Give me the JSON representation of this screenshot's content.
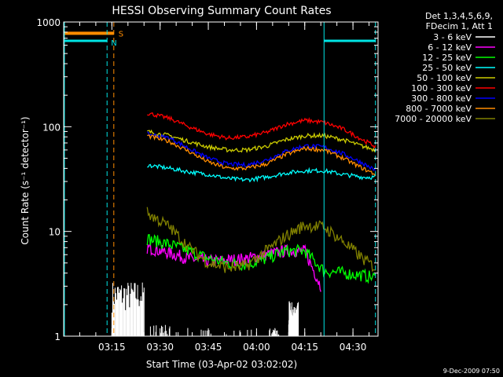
{
  "chart_data": {
    "type": "line",
    "title": "HESSI Observing Summary Count Rates",
    "xlabel": "Start Time (03-Apr-02 03:02:02)",
    "ylabel": "Count Rate (s⁻¹ detector⁻¹)",
    "yscale": "log",
    "ylim": [
      1,
      1000
    ],
    "xlim_minutes": [
      3.0,
      4.63
    ],
    "x_ticks": [
      "03:15",
      "03:30",
      "03:45",
      "04:00",
      "04:15",
      "04:30"
    ],
    "y_ticks": [
      "1",
      "10",
      "100",
      "1000"
    ],
    "footer_date": "9-Dec-2009 07:50",
    "legend": {
      "header_lines": [
        "Det 1,3,4,5,6,9,",
        "FDecim 1, Att 1"
      ],
      "placement": "top-right"
    },
    "markers": {
      "saa_label": "S",
      "night_label": "N",
      "saa_color": "#ff8c00",
      "night_color": "#00e5e5"
    },
    "series": [
      {
        "name": "3 - 6 keV",
        "color": "#000000",
        "x": [
          3.25,
          3.4167,
          3.45,
          3.55,
          3.5833,
          3.9833,
          4.0667,
          4.1167,
          4.1667,
          4.2167
        ],
        "y": [
          2.8,
          2.2,
          1.1,
          1.0,
          1.0,
          1.0,
          1.0,
          1.5,
          1.8,
          1.6
        ]
      },
      {
        "name": "6 - 12 keV",
        "color": "#ff00ff",
        "x": [
          3.4333,
          3.55,
          3.65,
          3.75,
          3.85,
          3.95,
          4.05,
          4.15,
          4.25,
          4.3333
        ],
        "y": [
          7.0,
          6.2,
          5.5,
          5.2,
          5.3,
          5.5,
          6.0,
          6.5,
          6.5,
          3.0
        ]
      },
      {
        "name": "12 - 25 keV",
        "color": "#00ff00",
        "x": [
          3.4333,
          3.55,
          3.65,
          3.75,
          3.85,
          3.95,
          4.05,
          4.15,
          4.25,
          4.35,
          4.45,
          4.55,
          4.6167
        ],
        "y": [
          8.5,
          7.5,
          6.5,
          5.5,
          5.0,
          4.8,
          5.5,
          6.5,
          6.5,
          4.2,
          4.0,
          3.8,
          3.6
        ]
      },
      {
        "name": "25 - 50 keV",
        "color": "#00ffff",
        "x": [
          3.4333,
          3.55,
          3.65,
          3.75,
          3.85,
          3.95,
          4.05,
          4.15,
          4.25,
          4.35,
          4.45,
          4.55,
          4.6167
        ],
        "y": [
          43,
          40,
          37,
          35,
          32,
          31,
          33,
          36,
          38,
          38,
          35,
          33,
          33
        ]
      },
      {
        "name": "50 - 100 keV",
        "color": "#cccc00",
        "x": [
          3.4333,
          3.55,
          3.65,
          3.75,
          3.85,
          3.95,
          4.05,
          4.15,
          4.25,
          4.35,
          4.45,
          4.55,
          4.6167
        ],
        "y": [
          90,
          82,
          72,
          64,
          60,
          60,
          65,
          75,
          82,
          82,
          75,
          65,
          60
        ]
      },
      {
        "name": "100 - 300 keV",
        "color": "#ff0000",
        "x": [
          3.4333,
          3.55,
          3.65,
          3.75,
          3.85,
          3.95,
          4.05,
          4.15,
          4.25,
          4.35,
          4.45,
          4.55,
          4.6167
        ],
        "y": [
          135,
          120,
          100,
          85,
          78,
          80,
          88,
          105,
          115,
          110,
          95,
          75,
          65
        ]
      },
      {
        "name": "300 - 800 keV",
        "color": "#0000ff",
        "x": [
          3.4333,
          3.55,
          3.65,
          3.75,
          3.85,
          3.95,
          4.05,
          4.15,
          4.25,
          4.35,
          4.45,
          4.55,
          4.6167
        ],
        "y": [
          85,
          78,
          62,
          50,
          44,
          43,
          48,
          58,
          66,
          64,
          55,
          45,
          38
        ]
      },
      {
        "name": "800 - 7000 keV",
        "color": "#ff8c00",
        "x": [
          3.4333,
          3.55,
          3.65,
          3.75,
          3.85,
          3.95,
          4.05,
          4.15,
          4.25,
          4.35,
          4.45,
          4.55,
          4.6167
        ],
        "y": [
          82,
          72,
          58,
          46,
          40,
          40,
          44,
          54,
          62,
          60,
          50,
          40,
          35
        ]
      },
      {
        "name": "7000 - 20000 keV",
        "color": "#808000",
        "x": [
          3.4333,
          3.55,
          3.65,
          3.75,
          3.85,
          3.95,
          4.05,
          4.15,
          4.25,
          4.35,
          4.45,
          4.55,
          4.6167
        ],
        "y": [
          15,
          11,
          7,
          5,
          4.5,
          4.7,
          6.5,
          9,
          11.5,
          11,
          8,
          5.5,
          4.5
        ]
      }
    ]
  }
}
